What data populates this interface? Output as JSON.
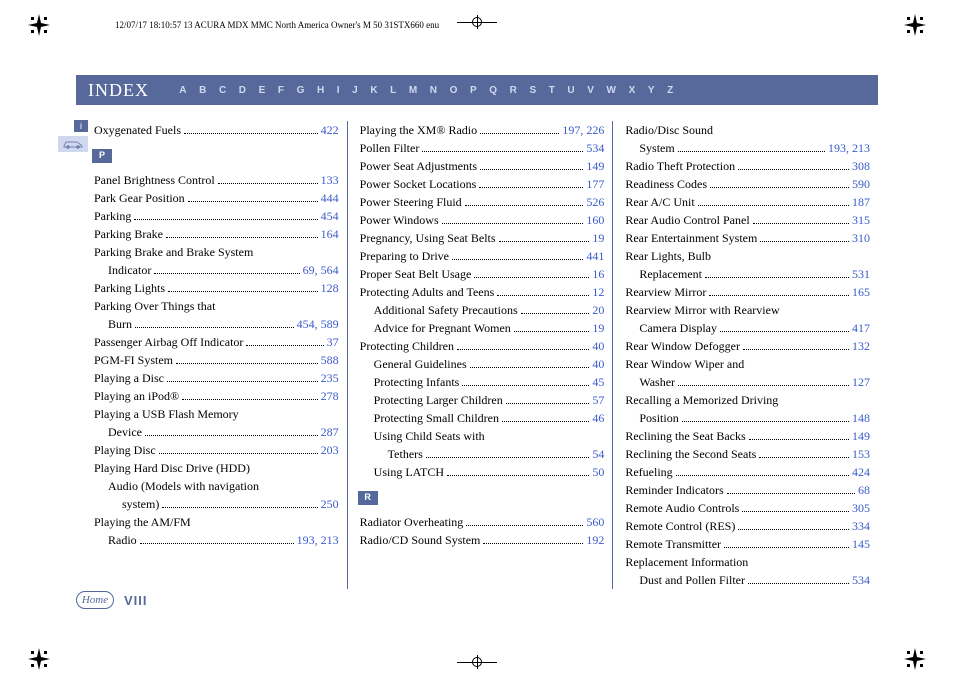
{
  "colors": {
    "theme": "#56699a",
    "link": "#3a5bcc",
    "alpha_inactive": "#cfd8ee",
    "background": "#ffffff",
    "text": "#000000"
  },
  "typography": {
    "body_font": "Georgia, 'Times New Roman', serif",
    "body_size_pt": 9,
    "tab_font": "Arial, sans-serif",
    "tab_size_pt": 7,
    "index_title_size_pt": 14
  },
  "header": {
    "print_info": "12/07/17 18:10:57   13 ACURA MDX MMC North America Owner's M 50 31STX660 enu"
  },
  "index_bar": {
    "title": "INDEX",
    "alphabet": [
      "A",
      "B",
      "C",
      "D",
      "E",
      "F",
      "G",
      "H",
      "I",
      "J",
      "K",
      "L",
      "M",
      "N",
      "O",
      "P",
      "Q",
      "R",
      "S",
      "T",
      "U",
      "V",
      "W",
      "X",
      "Y",
      "Z"
    ]
  },
  "side_icons": {
    "info_label": "i",
    "car": true
  },
  "footer": {
    "home_label": "Home",
    "page_number": "VIII"
  },
  "section_tags": {
    "p": "P",
    "r": "R"
  },
  "columns": [
    {
      "entries": [
        {
          "label": "Oxygenated Fuels",
          "pages": [
            "422"
          ],
          "indent": 0
        },
        {
          "type": "tag",
          "key": "p"
        },
        {
          "label": "Panel Brightness Control",
          "pages": [
            "133"
          ],
          "indent": 0
        },
        {
          "label": "Park Gear Position",
          "pages": [
            "444"
          ],
          "indent": 0
        },
        {
          "label": "Parking",
          "pages": [
            "454"
          ],
          "indent": 0
        },
        {
          "label": "Parking Brake",
          "pages": [
            "164"
          ],
          "indent": 0
        },
        {
          "label": "Parking Brake and Brake System",
          "wrap": true,
          "indent": 0
        },
        {
          "label": "Indicator",
          "pages": [
            "69",
            "564"
          ],
          "indent": 1
        },
        {
          "label": "Parking Lights",
          "pages": [
            "128"
          ],
          "indent": 0
        },
        {
          "label": "Parking Over Things that",
          "wrap": true,
          "indent": 0
        },
        {
          "label": "Burn",
          "pages": [
            "454",
            "589"
          ],
          "indent": 1
        },
        {
          "label": "Passenger Airbag Off Indicator",
          "pages": [
            "37"
          ],
          "indent": 0
        },
        {
          "label": "PGM-FI System",
          "pages": [
            "588"
          ],
          "indent": 0
        },
        {
          "label": "Playing a Disc",
          "pages": [
            "235"
          ],
          "indent": 0
        },
        {
          "label": "Playing an iPod®",
          "pages": [
            "278"
          ],
          "indent": 0
        },
        {
          "label": "Playing a USB Flash Memory",
          "wrap": true,
          "indent": 0
        },
        {
          "label": "Device",
          "pages": [
            "287"
          ],
          "indent": 1
        },
        {
          "label": "Playing Disc",
          "pages": [
            "203"
          ],
          "indent": 0
        },
        {
          "label": "Playing Hard Disc Drive (HDD)",
          "wrap": true,
          "indent": 0
        },
        {
          "label": "Audio (Models with navigation",
          "wrap": true,
          "indent": 1
        },
        {
          "label": "system)",
          "pages": [
            "250"
          ],
          "indent": 2
        },
        {
          "label": "Playing the AM/FM",
          "wrap": true,
          "indent": 0
        },
        {
          "label": "Radio",
          "pages": [
            "193",
            "213"
          ],
          "indent": 1
        }
      ]
    },
    {
      "entries": [
        {
          "label": "Playing the XM® Radio",
          "pages": [
            "197",
            "226"
          ],
          "indent": 0
        },
        {
          "label": "Pollen Filter",
          "pages": [
            "534"
          ],
          "indent": 0
        },
        {
          "label": "Power Seat Adjustments",
          "pages": [
            "149"
          ],
          "indent": 0
        },
        {
          "label": "Power Socket Locations",
          "pages": [
            "177"
          ],
          "indent": 0
        },
        {
          "label": "Power Steering Fluid",
          "pages": [
            "526"
          ],
          "indent": 0
        },
        {
          "label": "Power Windows",
          "pages": [
            "160"
          ],
          "indent": 0
        },
        {
          "label": "Pregnancy, Using Seat Belts",
          "pages": [
            "19"
          ],
          "indent": 0
        },
        {
          "label": "Preparing to Drive",
          "pages": [
            "441"
          ],
          "indent": 0
        },
        {
          "label": "Proper Seat Belt Usage",
          "pages": [
            "16"
          ],
          "indent": 0
        },
        {
          "label": "Protecting Adults and Teens",
          "pages": [
            "12"
          ],
          "indent": 0
        },
        {
          "label": "Additional Safety Precautions",
          "pages": [
            "20"
          ],
          "indent": 1
        },
        {
          "label": "Advice for Pregnant Women",
          "pages": [
            "19"
          ],
          "indent": 1
        },
        {
          "label": "Protecting Children",
          "pages": [
            "40"
          ],
          "indent": 0
        },
        {
          "label": "General Guidelines",
          "pages": [
            "40"
          ],
          "indent": 1
        },
        {
          "label": "Protecting Infants",
          "pages": [
            "45"
          ],
          "indent": 1
        },
        {
          "label": "Protecting Larger Children",
          "pages": [
            "57"
          ],
          "indent": 1
        },
        {
          "label": "Protecting Small Children",
          "pages": [
            "46"
          ],
          "indent": 1
        },
        {
          "label": "Using Child Seats with",
          "wrap": true,
          "indent": 1
        },
        {
          "label": "Tethers",
          "pages": [
            "54"
          ],
          "indent": 2
        },
        {
          "label": "Using LATCH",
          "pages": [
            "50"
          ],
          "indent": 1
        },
        {
          "type": "tag",
          "key": "r"
        },
        {
          "label": "Radiator Overheating",
          "pages": [
            "560"
          ],
          "indent": 0
        },
        {
          "label": "Radio/CD Sound System",
          "pages": [
            "192"
          ],
          "indent": 0
        }
      ]
    },
    {
      "entries": [
        {
          "label": "Radio/Disc Sound",
          "wrap": true,
          "indent": 0
        },
        {
          "label": "System",
          "pages": [
            "193",
            "213"
          ],
          "indent": 1
        },
        {
          "label": "Radio Theft Protection",
          "pages": [
            "308"
          ],
          "indent": 0
        },
        {
          "label": "Readiness Codes",
          "pages": [
            "590"
          ],
          "indent": 0
        },
        {
          "label": "Rear A/C Unit",
          "pages": [
            "187"
          ],
          "indent": 0
        },
        {
          "label": "Rear Audio Control Panel",
          "pages": [
            "315"
          ],
          "indent": 0
        },
        {
          "label": "Rear Entertainment System",
          "pages": [
            "310"
          ],
          "indent": 0
        },
        {
          "label": "Rear Lights, Bulb",
          "wrap": true,
          "indent": 0
        },
        {
          "label": "Replacement",
          "pages": [
            "531"
          ],
          "indent": 1
        },
        {
          "label": "Rearview Mirror",
          "pages": [
            "165"
          ],
          "indent": 0
        },
        {
          "label": "Rearview Mirror with Rearview",
          "wrap": true,
          "indent": 0
        },
        {
          "label": "Camera Display",
          "pages": [
            "417"
          ],
          "indent": 1
        },
        {
          "label": "Rear Window Defogger",
          "pages": [
            "132"
          ],
          "indent": 0
        },
        {
          "label": "Rear Window Wiper and",
          "wrap": true,
          "indent": 0
        },
        {
          "label": "Washer",
          "pages": [
            "127"
          ],
          "indent": 1
        },
        {
          "label": "Recalling a Memorized Driving",
          "wrap": true,
          "indent": 0
        },
        {
          "label": "Position",
          "pages": [
            "148"
          ],
          "indent": 1
        },
        {
          "label": "Reclining the Seat Backs",
          "pages": [
            "149"
          ],
          "indent": 0
        },
        {
          "label": "Reclining the Second Seats",
          "pages": [
            "153"
          ],
          "indent": 0
        },
        {
          "label": "Refueling",
          "pages": [
            "424"
          ],
          "indent": 0
        },
        {
          "label": "Reminder Indicators",
          "pages": [
            "68"
          ],
          "indent": 0
        },
        {
          "label": "Remote Audio Controls",
          "pages": [
            "305"
          ],
          "indent": 0
        },
        {
          "label": "Remote Control (RES)",
          "pages": [
            "334"
          ],
          "indent": 0
        },
        {
          "label": "Remote Transmitter",
          "pages": [
            "145"
          ],
          "indent": 0
        },
        {
          "label": "Replacement Information",
          "wrap": true,
          "indent": 0
        },
        {
          "label": "Dust and Pollen Filter",
          "pages": [
            "534"
          ],
          "indent": 1
        }
      ]
    }
  ]
}
